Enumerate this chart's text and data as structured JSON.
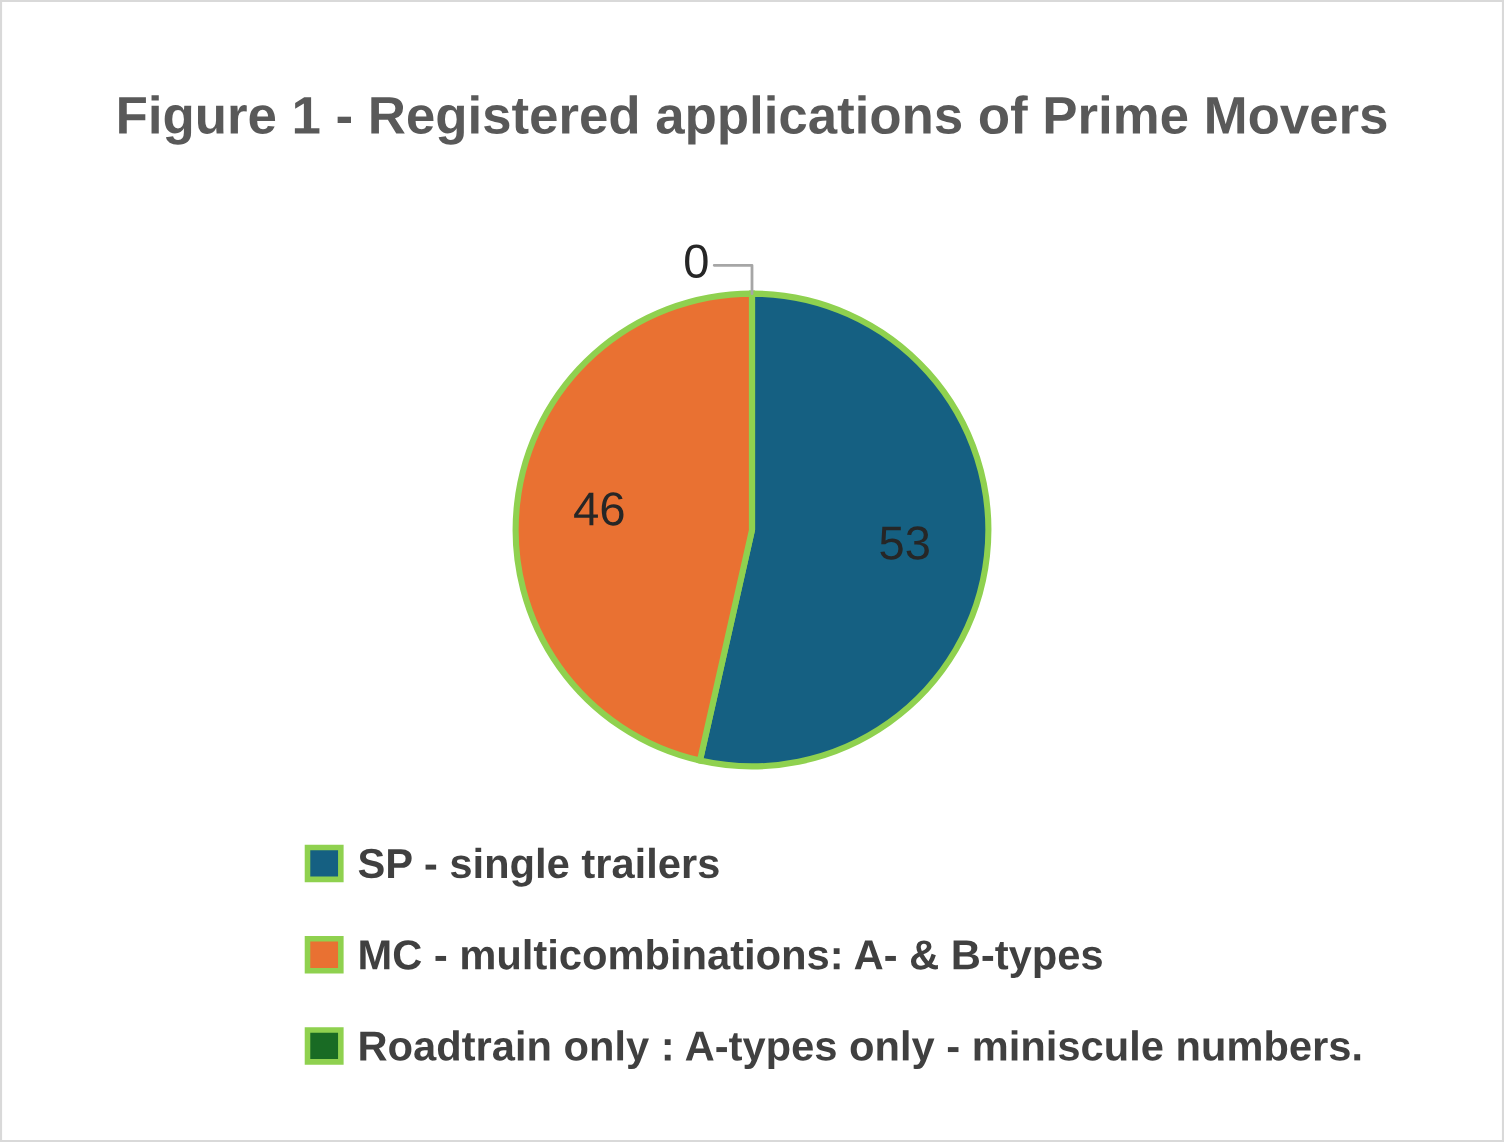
{
  "chart_data": {
    "type": "pie",
    "title": "Figure 1 - Registered applications of Prime Movers",
    "categories": [
      "SP - single trailers",
      "MC - multicombinations: A- & B-types",
      "Roadtrain only : A-types only - miniscule numbers."
    ],
    "values": [
      53,
      46,
      0
    ],
    "colors": [
      "#156082",
      "#e97132",
      "#196b24"
    ],
    "value_labels": [
      "53",
      "46",
      "0"
    ],
    "legend": "bottom"
  }
}
